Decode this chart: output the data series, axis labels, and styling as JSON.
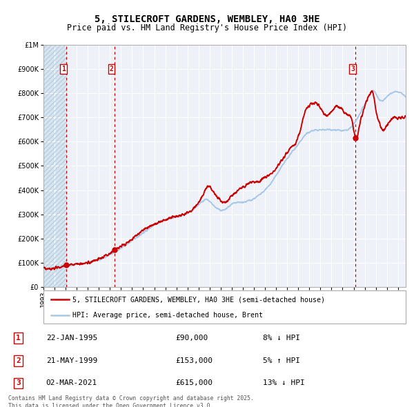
{
  "title": "5, STILECROFT GARDENS, WEMBLEY, HA0 3HE",
  "subtitle": "Price paid vs. HM Land Registry's House Price Index (HPI)",
  "ylim": [
    0,
    1000000
  ],
  "yticks": [
    0,
    100000,
    200000,
    300000,
    400000,
    500000,
    600000,
    700000,
    800000,
    900000,
    1000000
  ],
  "xlim_start": 1993.0,
  "xlim_end": 2025.7,
  "hpi_color": "#a8c8e8",
  "price_color": "#cc0000",
  "sale_color": "#cc0000",
  "dashed_color": "#cc0000",
  "bg_chart": "#eef2f8",
  "bg_hatched": "#d8e4f0",
  "grid_color": "#ffffff",
  "legend_line1": "5, STILECROFT GARDENS, WEMBLEY, HA0 3HE (semi-detached house)",
  "legend_line2": "HPI: Average price, semi-detached house, Brent",
  "transactions": [
    {
      "num": 1,
      "date": "22-JAN-1995",
      "date_x": 1995.06,
      "price": 90000,
      "hpi_pct": "8%",
      "hpi_dir": "↓"
    },
    {
      "num": 2,
      "date": "21-MAY-1999",
      "date_x": 1999.39,
      "price": 153000,
      "hpi_pct": "5%",
      "hpi_dir": "↑"
    },
    {
      "num": 3,
      "date": "02-MAR-2021",
      "date_x": 2021.17,
      "price": 615000,
      "hpi_pct": "13%",
      "hpi_dir": "↓"
    }
  ],
  "footer": "Contains HM Land Registry data © Crown copyright and database right 2025.\nThis data is licensed under the Open Government Licence v3.0.",
  "hpi_milestones": [
    [
      1993.0,
      75000
    ],
    [
      1994.0,
      80000
    ],
    [
      1995.0,
      87000
    ],
    [
      1996.0,
      93000
    ],
    [
      1997.0,
      100000
    ],
    [
      1998.0,
      112000
    ],
    [
      1999.0,
      132000
    ],
    [
      1999.5,
      145000
    ],
    [
      2000.5,
      175000
    ],
    [
      2001.5,
      208000
    ],
    [
      2002.5,
      240000
    ],
    [
      2003.0,
      258000
    ],
    [
      2004.0,
      278000
    ],
    [
      2005.0,
      288000
    ],
    [
      2006.0,
      305000
    ],
    [
      2007.0,
      340000
    ],
    [
      2007.7,
      360000
    ],
    [
      2008.5,
      330000
    ],
    [
      2009.3,
      318000
    ],
    [
      2010.0,
      340000
    ],
    [
      2011.0,
      350000
    ],
    [
      2012.0,
      365000
    ],
    [
      2013.0,
      400000
    ],
    [
      2014.0,
      460000
    ],
    [
      2015.0,
      530000
    ],
    [
      2016.0,
      590000
    ],
    [
      2016.5,
      620000
    ],
    [
      2017.0,
      640000
    ],
    [
      2018.0,
      648000
    ],
    [
      2019.0,
      650000
    ],
    [
      2020.0,
      645000
    ],
    [
      2020.8,
      660000
    ],
    [
      2021.5,
      710000
    ],
    [
      2022.3,
      780000
    ],
    [
      2022.8,
      810000
    ],
    [
      2023.3,
      775000
    ],
    [
      2024.0,
      785000
    ],
    [
      2024.8,
      805000
    ],
    [
      2025.3,
      800000
    ]
  ],
  "price_milestones": [
    [
      1993.0,
      78000
    ],
    [
      1994.5,
      83000
    ],
    [
      1995.06,
      90000
    ],
    [
      1996.0,
      94000
    ],
    [
      1997.0,
      100000
    ],
    [
      1998.0,
      115000
    ],
    [
      1999.0,
      140000
    ],
    [
      1999.39,
      153000
    ],
    [
      2000.0,
      168000
    ],
    [
      2001.0,
      198000
    ],
    [
      2002.0,
      235000
    ],
    [
      2003.0,
      258000
    ],
    [
      2004.0,
      278000
    ],
    [
      2005.0,
      290000
    ],
    [
      2006.0,
      308000
    ],
    [
      2007.0,
      348000
    ],
    [
      2007.5,
      390000
    ],
    [
      2007.9,
      415000
    ],
    [
      2008.3,
      395000
    ],
    [
      2008.8,
      365000
    ],
    [
      2009.2,
      350000
    ],
    [
      2009.8,
      365000
    ],
    [
      2010.3,
      390000
    ],
    [
      2010.8,
      405000
    ],
    [
      2011.3,
      420000
    ],
    [
      2011.8,
      435000
    ],
    [
      2012.3,
      430000
    ],
    [
      2012.8,
      445000
    ],
    [
      2013.3,
      460000
    ],
    [
      2013.8,
      480000
    ],
    [
      2014.3,
      510000
    ],
    [
      2014.8,
      540000
    ],
    [
      2015.3,
      575000
    ],
    [
      2015.8,
      600000
    ],
    [
      2016.2,
      650000
    ],
    [
      2016.6,
      720000
    ],
    [
      2017.0,
      750000
    ],
    [
      2017.5,
      760000
    ],
    [
      2018.0,
      740000
    ],
    [
      2018.5,
      710000
    ],
    [
      2019.0,
      725000
    ],
    [
      2019.5,
      745000
    ],
    [
      2020.0,
      730000
    ],
    [
      2020.5,
      710000
    ],
    [
      2020.9,
      680000
    ],
    [
      2021.17,
      615000
    ],
    [
      2021.5,
      660000
    ],
    [
      2022.0,
      745000
    ],
    [
      2022.5,
      800000
    ],
    [
      2022.8,
      790000
    ],
    [
      2023.0,
      730000
    ],
    [
      2023.3,
      680000
    ],
    [
      2023.6,
      650000
    ],
    [
      2024.0,
      665000
    ],
    [
      2024.5,
      695000
    ],
    [
      2025.0,
      700000
    ],
    [
      2025.3,
      698000
    ]
  ]
}
